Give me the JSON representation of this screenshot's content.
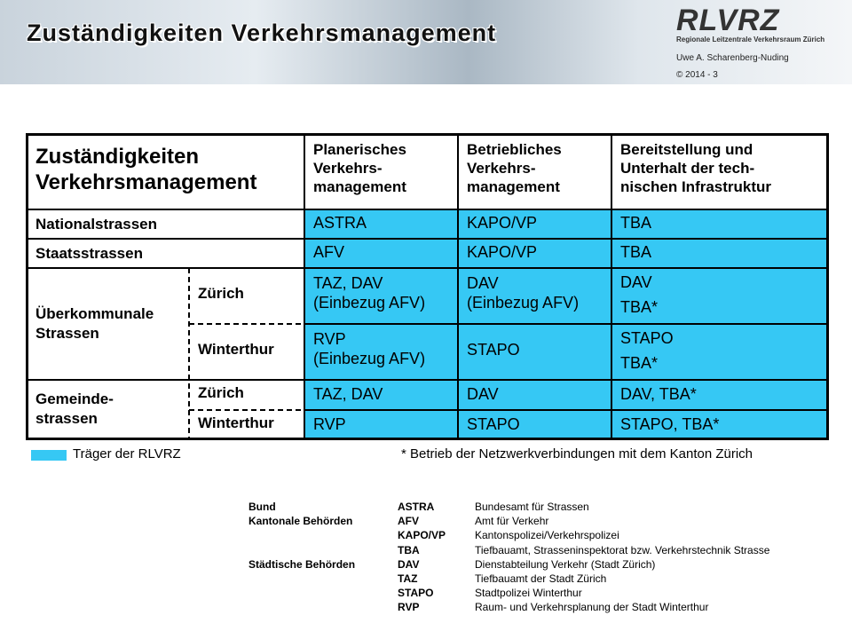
{
  "header": {
    "title": "Zuständigkeiten Verkehrsmanagement",
    "logo": "RLVRZ",
    "logo_subtitle": "Regionale Leitzentrale Verkehrsraum Zürich",
    "author": "Uwe A. Scharenberg-Nuding",
    "copyright": "© 2014  -  3"
  },
  "table": {
    "corner": [
      "Zuständigkeiten",
      "Verkehrsmanagement"
    ],
    "columns": [
      [
        "Planerisches",
        "Verkehrs-",
        "management"
      ],
      [
        "Betriebliches",
        "Verkehrs-",
        "management"
      ],
      [
        "Bereitstellung und",
        "Unterhalt der tech-",
        "nischen Infrastruktur"
      ]
    ],
    "rows": [
      {
        "group": [
          "Nationalstrassen"
        ],
        "cells": [
          [
            "ASTRA"
          ],
          [
            "KAPO/VP"
          ],
          [
            "TBA"
          ]
        ]
      },
      {
        "group": [
          "Staatsstrassen"
        ],
        "cells": [
          [
            "AFV"
          ],
          [
            "KAPO/VP"
          ],
          [
            "TBA"
          ]
        ]
      },
      {
        "group": [
          "Überkommunale",
          "Strassen"
        ],
        "subrows": [
          {
            "name": "Zürich",
            "cells": [
              [
                "TAZ, DAV",
                "(Einbezug AFV)"
              ],
              [
                "DAV",
                "(Einbezug AFV)"
              ],
              [
                "DAV",
                "TBA*"
              ]
            ]
          },
          {
            "name": "Winterthur",
            "cells": [
              [
                "RVP",
                "(Einbezug AFV)"
              ],
              [
                "STAPO"
              ],
              [
                "STAPO",
                "TBA*"
              ]
            ]
          }
        ]
      },
      {
        "group": [
          "Gemeinde-",
          "strassen"
        ],
        "subrows": [
          {
            "name": "Zürich",
            "cells": [
              [
                "TAZ, DAV"
              ],
              [
                "DAV"
              ],
              [
                "DAV, TBA*"
              ]
            ]
          },
          {
            "name": "Winterthur",
            "cells": [
              [
                "RVP"
              ],
              [
                "STAPO"
              ],
              [
                "STAPO, TBA*"
              ]
            ]
          }
        ]
      }
    ]
  },
  "legend": {
    "swatch_label": "Träger der RLVRZ",
    "note": "* Betrieb der Netzwerkverbindungen mit dem Kanton Zürich"
  },
  "abbreviations": [
    {
      "group": "Bund",
      "abbr": "ASTRA",
      "desc": "Bundesamt für Strassen"
    },
    {
      "group": "Kantonale Behörden",
      "abbr": "AFV",
      "desc": "Amt für Verkehr"
    },
    {
      "abbr": "KAPO/VP",
      "desc": "Kantonspolizei/Verkehrspolizei"
    },
    {
      "abbr": "TBA",
      "desc": "Tiefbauamt, Strasseninspektorat bzw. Verkehrstechnik Strasse"
    },
    {
      "group": "Städtische Behörden",
      "abbr": "DAV",
      "desc": "Dienstabteilung Verkehr (Stadt Zürich)"
    },
    {
      "abbr": "TAZ",
      "desc": "Tiefbauamt der Stadt Zürich"
    },
    {
      "abbr": "STAPO",
      "desc": "Stadtpolizei Winterthur"
    },
    {
      "abbr": "RVP",
      "desc": "Raum- und Verkehrsplanung der Stadt Winterthur"
    }
  ]
}
